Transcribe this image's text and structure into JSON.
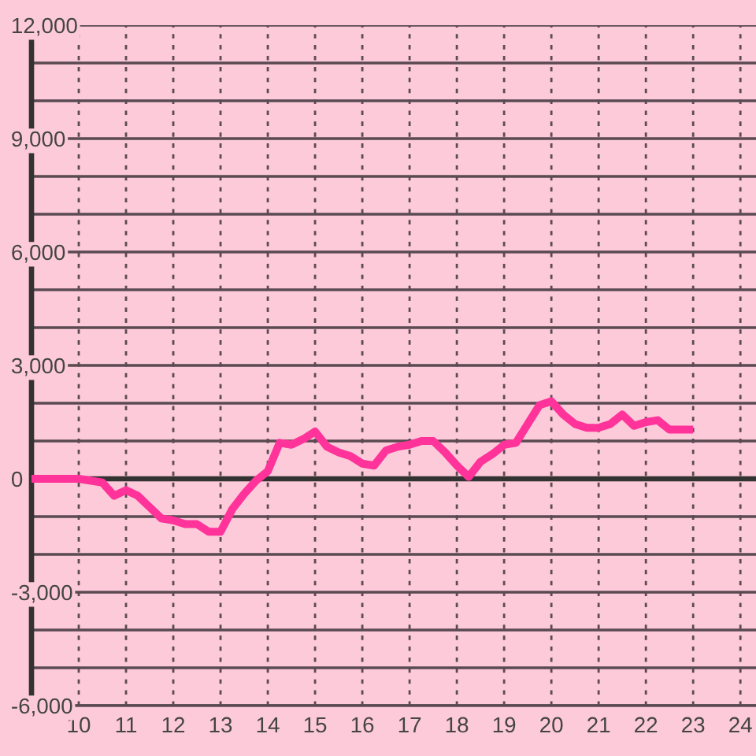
{
  "chart_data": {
    "type": "line",
    "x": [
      9,
      10,
      10.5,
      10.75,
      11,
      11.25,
      11.5,
      11.75,
      12,
      12.25,
      12.5,
      12.75,
      13,
      13.25,
      13.5,
      13.75,
      14,
      14.25,
      14.5,
      14.75,
      15,
      15.25,
      15.5,
      15.75,
      16,
      16.25,
      16.5,
      16.75,
      17,
      17.25,
      17.5,
      17.75,
      18,
      18.25,
      18.5,
      18.75,
      19,
      19.25,
      19.5,
      19.75,
      20,
      20.25,
      20.5,
      20.75,
      21,
      21.25,
      21.5,
      21.75,
      22,
      22.25,
      22.5,
      22.75,
      23
    ],
    "series": [
      {
        "color": "#ff3399",
        "values": [
          0,
          0,
          -100,
          -450,
          -300,
          -450,
          -750,
          -1050,
          -1100,
          -1200,
          -1200,
          -1400,
          -1400,
          -800,
          -400,
          -50,
          200,
          950,
          900,
          1050,
          1250,
          850,
          700,
          600,
          400,
          350,
          750,
          850,
          900,
          1000,
          1000,
          700,
          350,
          50,
          450,
          650,
          900,
          950,
          1450,
          1950,
          2050,
          1700,
          1450,
          1350,
          1350,
          1450,
          1700,
          1400,
          1500,
          1550,
          1300,
          1300,
          1300
        ]
      }
    ],
    "xlim": [
      9,
      24.33
    ],
    "ylim": [
      -6000,
      12000
    ],
    "xticks": [
      10,
      11,
      12,
      13,
      14,
      15,
      16,
      17,
      18,
      19,
      20,
      21,
      22,
      23,
      24
    ],
    "yticks": [
      {
        "value": -6000,
        "label": "-6,000"
      },
      {
        "value": -5000,
        "label": null
      },
      {
        "value": -4000,
        "label": null
      },
      {
        "value": -3000,
        "label": "-3,000"
      },
      {
        "value": -2000,
        "label": null
      },
      {
        "value": -1000,
        "label": null
      },
      0,
      {
        "value": 1000,
        "label": null
      },
      {
        "value": 2000,
        "label": null
      },
      {
        "value": 3000,
        "label": "3,000"
      },
      {
        "value": 4000,
        "label": null
      },
      {
        "value": 5000,
        "label": null
      },
      {
        "value": 6000,
        "label": "6,000"
      },
      {
        "value": 7000,
        "label": null
      },
      {
        "value": 8000,
        "label": null
      },
      {
        "value": 9000,
        "label": "9,000"
      },
      {
        "value": 10000,
        "label": null
      },
      {
        "value": 11000,
        "label": null
      },
      {
        "value": 12000,
        "label": "12,000"
      }
    ],
    "grid": true,
    "ref_lines": [
      {
        "axis": "y",
        "value": 0,
        "color": "#333333"
      }
    ],
    "line_style": "solid"
  }
}
